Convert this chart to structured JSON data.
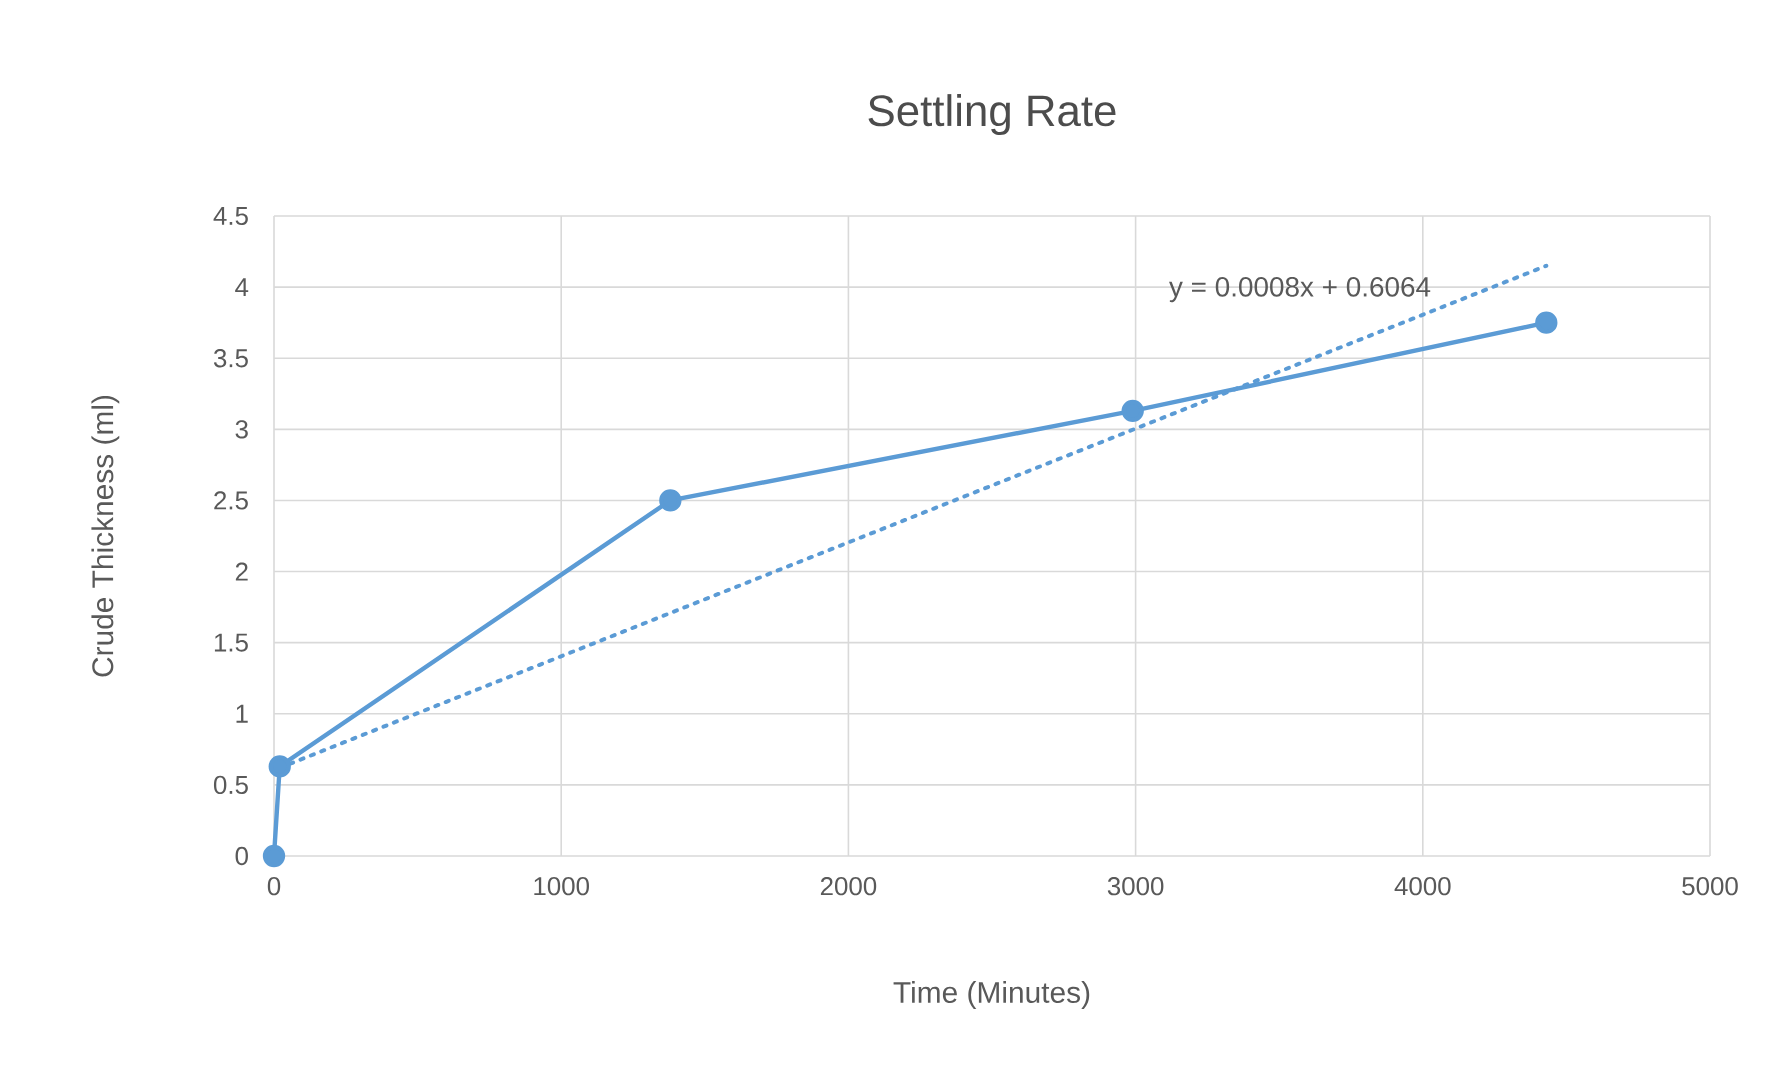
{
  "chart_data": {
    "type": "line",
    "title": "Settling Rate",
    "xlabel": "Time (Minutes)",
    "ylabel": "Crude Thickness (ml)",
    "xlim": [
      0,
      5000
    ],
    "xticks": [
      0,
      1000,
      2000,
      3000,
      4000,
      5000
    ],
    "ylim": [
      0,
      4.5
    ],
    "yticks": [
      0,
      0.5,
      1,
      1.5,
      2,
      2.5,
      3,
      3.5,
      4,
      4.5
    ],
    "grid": true,
    "marker": "circle",
    "line_style": "solid",
    "series": [
      {
        "color": "#5b9bd5",
        "x": [
          0,
          20,
          1380,
          2990,
          4430
        ],
        "values": [
          0,
          0.63,
          2.5,
          3.13,
          3.75
        ]
      },
      {
        "color": "#5b9bd5",
        "x": [
          20,
          4430
        ],
        "values": [
          0.62,
          4.15
        ],
        "marker": "none",
        "line_style": "dotted"
      }
    ],
    "annotations": [
      "y = 0.0008x + 0.6064"
    ]
  }
}
